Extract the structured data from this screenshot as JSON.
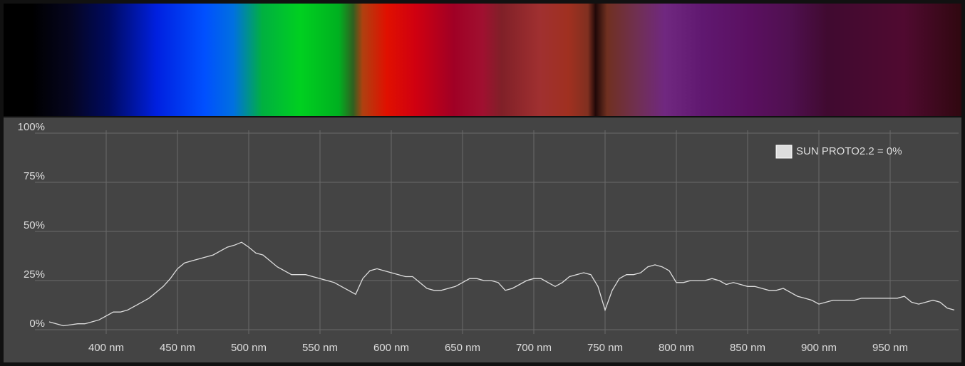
{
  "chart_data": {
    "type": "line",
    "x": [
      360,
      365,
      370,
      375,
      380,
      385,
      390,
      395,
      400,
      405,
      410,
      415,
      420,
      425,
      430,
      435,
      440,
      445,
      450,
      455,
      460,
      465,
      470,
      475,
      480,
      485,
      490,
      495,
      500,
      505,
      510,
      515,
      520,
      525,
      530,
      535,
      540,
      545,
      550,
      555,
      560,
      565,
      570,
      575,
      580,
      585,
      590,
      595,
      600,
      605,
      610,
      615,
      620,
      625,
      630,
      635,
      640,
      645,
      650,
      655,
      660,
      665,
      670,
      675,
      680,
      685,
      690,
      695,
      700,
      705,
      710,
      715,
      720,
      725,
      730,
      735,
      740,
      745,
      750,
      755,
      760,
      765,
      770,
      775,
      780,
      785,
      790,
      795,
      800,
      805,
      810,
      815,
      820,
      825,
      830,
      835,
      840,
      845,
      850,
      855,
      860,
      865,
      870,
      875,
      880,
      885,
      890,
      895,
      900,
      905,
      910,
      915,
      920,
      925,
      930,
      935,
      940,
      945,
      950,
      955,
      960,
      965,
      970,
      975,
      980,
      985,
      990,
      995
    ],
    "series": [
      {
        "name": "SUN PROTO2.2 = 0%",
        "color": "#dddddd",
        "values": [
          4,
          3,
          2,
          2.5,
          3,
          3,
          4,
          5,
          7,
          9,
          9,
          10,
          12,
          14,
          16,
          19,
          22,
          26,
          31,
          34,
          35,
          36,
          37,
          38,
          40,
          42,
          43,
          44.5,
          42,
          39,
          38,
          35,
          32,
          30,
          28,
          28,
          28,
          27,
          26,
          25,
          24,
          22,
          20,
          18,
          26,
          30,
          31,
          30,
          29,
          28,
          27,
          27,
          24,
          21,
          20,
          20,
          21,
          22,
          24,
          26,
          26,
          25,
          25,
          24,
          20,
          21,
          23,
          25,
          26,
          26,
          24,
          22,
          24,
          27,
          28,
          29,
          28,
          22,
          10,
          20,
          26,
          28,
          28,
          29,
          32,
          33,
          32,
          30,
          24,
          24,
          25,
          25,
          25,
          26,
          25,
          23,
          24,
          23,
          22,
          22,
          21,
          20,
          20,
          21,
          19,
          17,
          16,
          15,
          13,
          14,
          15,
          15,
          15,
          15,
          16,
          16,
          16,
          16,
          16,
          16,
          17,
          14,
          13,
          14,
          15,
          14,
          11,
          10
        ]
      }
    ],
    "xlim": [
      360,
      995
    ],
    "ylim": [
      0,
      100
    ],
    "xticks": [
      {
        "value": 400,
        "label": "400 nm"
      },
      {
        "value": 450,
        "label": "450 nm"
      },
      {
        "value": 500,
        "label": "500 nm"
      },
      {
        "value": 550,
        "label": "550 nm"
      },
      {
        "value": 600,
        "label": "600 nm"
      },
      {
        "value": 650,
        "label": "650 nm"
      },
      {
        "value": 700,
        "label": "700 nm"
      },
      {
        "value": 750,
        "label": "750 nm"
      },
      {
        "value": 800,
        "label": "800 nm"
      },
      {
        "value": 850,
        "label": "850 nm"
      },
      {
        "value": 900,
        "label": "900 nm"
      },
      {
        "value": 950,
        "label": "950 nm"
      }
    ],
    "yticks": [
      {
        "value": 0,
        "label": "0%"
      },
      {
        "value": 25,
        "label": "25%"
      },
      {
        "value": 50,
        "label": "50%"
      },
      {
        "value": 75,
        "label": "75%"
      },
      {
        "value": 100,
        "label": "100%"
      }
    ],
    "grid": true,
    "legend": "top-right"
  }
}
